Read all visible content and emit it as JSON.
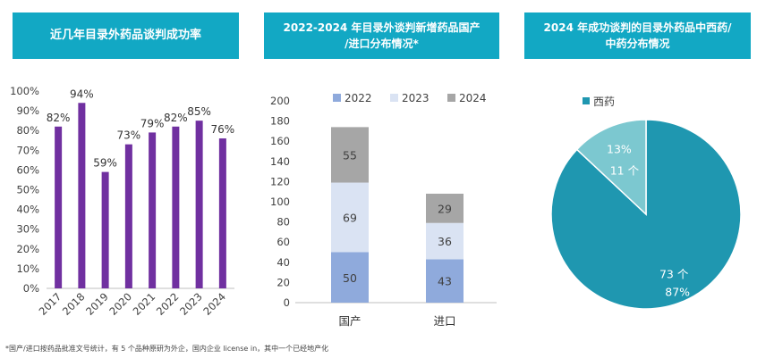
{
  "titles": {
    "chart1": "近几年目录外药品谈判成功率",
    "chart2_line1": "2022-2024 年目录外谈判新增药品国产",
    "chart2_line2": "/进口分布情况*",
    "chart3_line1": "2024 年成功谈判的目录外药品中西药/",
    "chart3_line2": "中药分布情况"
  },
  "footnote": "*国产/进口按药品批准文号统计，有 5 个品种原研为外企，国内企业 license in，其中一个已经地产化",
  "colors": {
    "banner": "#12a8c4",
    "bar_purple": "#7030a0",
    "s2022": "#8faadc",
    "s2023": "#dae3f3",
    "s2024": "#a6a6a6",
    "pie_xiyao": "#1f97b0",
    "pie_zhongyao": "#7cc8d0"
  },
  "chart_data": [
    {
      "type": "bar",
      "title": "近几年目录外药品谈判成功率",
      "categories": [
        "2017",
        "2018",
        "2019",
        "2020",
        "2021",
        "2022",
        "2023",
        "2024"
      ],
      "values": [
        82,
        94,
        59,
        73,
        79,
        82,
        85,
        76
      ],
      "value_labels": [
        "82%",
        "94%",
        "59%",
        "73%",
        "79%",
        "82%",
        "85%",
        "76%"
      ],
      "ylim": [
        0,
        100
      ],
      "yticks": [
        "0%",
        "10%",
        "20%",
        "30%",
        "40%",
        "50%",
        "60%",
        "70%",
        "80%",
        "90%",
        "100%"
      ],
      "grid": false
    },
    {
      "type": "bar",
      "stacked": true,
      "title": "2022-2024 年目录外谈判新增药品国产/进口分布情况*",
      "categories": [
        "国产",
        "进口"
      ],
      "series": [
        {
          "name": "2022",
          "values": [
            50,
            43
          ]
        },
        {
          "name": "2023",
          "values": [
            69,
            36
          ]
        },
        {
          "name": "2024",
          "values": [
            55,
            29
          ]
        }
      ],
      "ylim": [
        0,
        200
      ],
      "yticks": [
        "0",
        "20",
        "40",
        "60",
        "80",
        "100",
        "120",
        "140",
        "160",
        "180",
        "200"
      ],
      "legend": "top",
      "grid": false
    },
    {
      "type": "pie",
      "title": "2024 年成功谈判的目录外药品中西药/中药分布情况",
      "legend_label": "西药",
      "legend": "top-left",
      "slices": [
        {
          "count": 73,
          "count_label": "73 个",
          "percent": 87,
          "percent_label": "87%"
        },
        {
          "count": 11,
          "count_label": "11 个",
          "percent": 13,
          "percent_label": "13%"
        }
      ]
    }
  ]
}
